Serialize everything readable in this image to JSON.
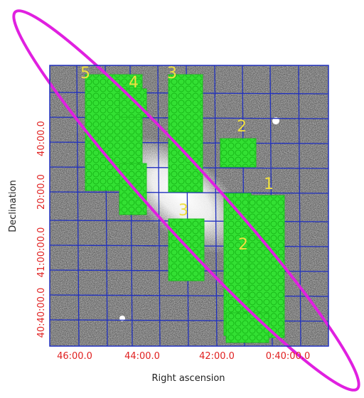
{
  "axes": {
    "x_title": "Right ascension",
    "y_title": "Declination",
    "x_ticks": [
      "46:00.0",
      "44:00.0",
      "42:00.0",
      "0:40:00.0"
    ],
    "y_ticks": [
      "40:00.0",
      "20:00.0",
      "41:00:00.0",
      "40:40:00.0"
    ]
  },
  "regions": [
    {
      "label": "5"
    },
    {
      "label": "4"
    },
    {
      "label": "3"
    },
    {
      "label": "2"
    },
    {
      "label": "1"
    },
    {
      "label": "3"
    },
    {
      "label": "2"
    }
  ]
}
